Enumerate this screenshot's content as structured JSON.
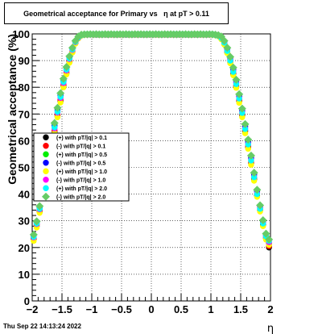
{
  "header": {
    "title": "Geometrical acceptance for Primary vs   η at pT > 0.11"
  },
  "footer": {
    "datestamp": "Thu Sep 22 14:13:24 2022"
  },
  "chart_data": {
    "type": "scatter",
    "title": "Geometrical acceptance for Primary vs   η at pT > 0.11",
    "xlabel": "η",
    "ylabel": "Geometrical acceptance (%)",
    "xlim": [
      -2,
      2
    ],
    "ylim": [
      0,
      100
    ],
    "xticks": [
      -2,
      -1.5,
      -1,
      -0.5,
      0,
      0.5,
      1,
      1.5,
      2
    ],
    "xtick_labels": [
      "−2",
      "−1.5",
      "−1",
      "−0.5",
      "0",
      "0.5",
      "1",
      "1.5",
      "2"
    ],
    "yticks": [
      0,
      10,
      20,
      30,
      40,
      50,
      60,
      70,
      80,
      90,
      100
    ],
    "ytick_labels": [
      "0",
      "10",
      "20",
      "30",
      "40",
      "50",
      "60",
      "70",
      "80",
      "90",
      "100"
    ],
    "grid": true,
    "legend_position": "left-middle",
    "x": [
      -1.975,
      -1.925,
      -1.875,
      -1.825,
      -1.775,
      -1.725,
      -1.675,
      -1.625,
      -1.575,
      -1.525,
      -1.475,
      -1.425,
      -1.375,
      -1.325,
      -1.275,
      -1.225,
      -1.175,
      -1.125,
      -1.075,
      -1.025,
      -0.975,
      -0.925,
      -0.875,
      -0.825,
      -0.775,
      -0.725,
      -0.675,
      -0.625,
      -0.575,
      -0.525,
      -0.475,
      -0.425,
      -0.375,
      -0.325,
      -0.275,
      -0.225,
      -0.175,
      -0.125,
      -0.075,
      -0.025,
      0.025,
      0.075,
      0.125,
      0.175,
      0.225,
      0.275,
      0.325,
      0.375,
      0.425,
      0.475,
      0.525,
      0.575,
      0.625,
      0.675,
      0.725,
      0.775,
      0.825,
      0.875,
      0.925,
      0.975,
      1.025,
      1.075,
      1.125,
      1.175,
      1.225,
      1.275,
      1.325,
      1.375,
      1.425,
      1.475,
      1.525,
      1.575,
      1.625,
      1.675,
      1.725,
      1.775,
      1.825,
      1.875,
      1.925,
      1.975
    ],
    "series": [
      {
        "name": "(+) with pT/|q| > 0.1",
        "color": "#000000",
        "marker": "circle",
        "values": [
          23.2,
          28.0,
          33.5,
          39.0,
          45.2,
          51.5,
          57.5,
          63.2,
          69.3,
          74.8,
          80.5,
          85.2,
          89.5,
          93.2,
          96.5,
          98.5,
          99.4,
          99.7,
          99.8,
          99.8,
          99.8,
          99.7,
          99.8,
          99.7,
          99.8,
          99.7,
          99.8,
          99.8,
          99.7,
          99.8,
          99.8,
          99.7,
          99.8,
          99.7,
          99.8,
          99.8,
          99.7,
          99.8,
          99.7,
          99.8,
          99.7,
          99.8,
          99.8,
          99.7,
          99.8,
          99.7,
          99.8,
          99.8,
          99.7,
          99.8,
          99.8,
          99.7,
          99.8,
          99.7,
          99.8,
          99.7,
          99.8,
          99.8,
          99.7,
          99.8,
          99.8,
          99.6,
          99.2,
          98.3,
          96.2,
          93.0,
          89.3,
          85.0,
          80.3,
          74.8,
          69.5,
          63.5,
          57.5,
          51.5,
          45.5,
          39.5,
          34.0,
          28.5,
          23.5,
          20.0
        ]
      },
      {
        "name": "(-) with pT/|q| > 0.1",
        "color": "#ff0000",
        "marker": "circle",
        "values": [
          23.6,
          28.5,
          34.0,
          39.5,
          45.8,
          52.0,
          58.0,
          63.8,
          69.8,
          75.3,
          81.0,
          85.7,
          90.0,
          93.6,
          96.8,
          98.7,
          99.5,
          99.8,
          99.7,
          99.8,
          99.7,
          99.8,
          99.7,
          99.8,
          99.7,
          99.8,
          99.7,
          99.7,
          99.8,
          99.7,
          99.7,
          99.8,
          99.7,
          99.8,
          99.7,
          99.7,
          99.8,
          99.7,
          99.8,
          99.7,
          99.8,
          99.7,
          99.7,
          99.8,
          99.7,
          99.8,
          99.7,
          99.7,
          99.8,
          99.7,
          99.7,
          99.8,
          99.7,
          99.8,
          99.7,
          99.8,
          99.7,
          99.7,
          99.8,
          99.7,
          99.7,
          99.7,
          99.3,
          98.5,
          96.6,
          93.4,
          89.8,
          85.5,
          80.8,
          75.3,
          70.0,
          64.0,
          58.0,
          52.0,
          46.0,
          40.0,
          34.5,
          29.0,
          24.0,
          20.5
        ]
      },
      {
        "name": "(+) with pT/|q| > 0.5",
        "color": "#00ee00",
        "marker": "circle",
        "values": [
          24.5,
          29.5,
          35.0,
          41.0,
          47.5,
          54.0,
          60.2,
          66.0,
          71.8,
          77.3,
          82.7,
          87.2,
          91.3,
          94.6,
          97.3,
          98.9,
          99.6,
          99.8,
          99.9,
          99.9,
          99.8,
          99.9,
          99.8,
          99.9,
          99.8,
          99.9,
          99.9,
          99.8,
          99.9,
          99.8,
          99.9,
          99.9,
          99.8,
          99.9,
          99.8,
          99.9,
          99.9,
          99.8,
          99.9,
          99.8,
          99.9,
          99.8,
          99.9,
          99.9,
          99.8,
          99.9,
          99.8,
          99.9,
          99.9,
          99.8,
          99.9,
          99.8,
          99.9,
          99.8,
          99.9,
          99.9,
          99.8,
          99.9,
          99.8,
          99.9,
          99.9,
          99.7,
          99.4,
          98.8,
          97.2,
          94.4,
          91.0,
          87.0,
          82.4,
          77.0,
          71.6,
          65.6,
          59.8,
          53.8,
          47.5,
          41.2,
          35.5,
          29.8,
          25.0,
          21.5
        ]
      },
      {
        "name": "(-) with pT/|q| > 0.5",
        "color": "#0000ff",
        "marker": "circle",
        "values": [
          24.2,
          29.2,
          34.8,
          40.6,
          47.0,
          53.5,
          59.6,
          65.5,
          71.3,
          76.8,
          82.2,
          86.8,
          91.0,
          94.4,
          97.1,
          98.8,
          99.6,
          99.8,
          99.8,
          99.8,
          99.9,
          99.8,
          99.8,
          99.9,
          99.8,
          99.8,
          99.9,
          99.8,
          99.8,
          99.9,
          99.8,
          99.8,
          99.9,
          99.8,
          99.8,
          99.9,
          99.8,
          99.8,
          99.9,
          99.8,
          99.8,
          99.9,
          99.8,
          99.8,
          99.9,
          99.8,
          99.8,
          99.9,
          99.8,
          99.8,
          99.9,
          99.8,
          99.8,
          99.9,
          99.8,
          99.8,
          99.9,
          99.8,
          99.8,
          99.9,
          99.8,
          99.7,
          99.4,
          98.6,
          97.0,
          94.0,
          90.6,
          86.6,
          82.0,
          76.6,
          71.2,
          65.2,
          59.4,
          53.4,
          47.2,
          41.0,
          35.2,
          29.5,
          24.6,
          21.2
        ]
      },
      {
        "name": "(+) with pT/|q| > 1.0",
        "color": "#ffff00",
        "marker": "circle",
        "values": [
          22.5,
          27.5,
          33.0,
          38.5,
          44.8,
          51.0,
          57.0,
          62.8,
          68.8,
          74.3,
          80.0,
          84.8,
          89.2,
          93.0,
          96.3,
          98.3,
          99.3,
          99.7,
          99.8,
          99.9,
          99.8,
          99.8,
          99.9,
          99.8,
          99.8,
          99.9,
          99.8,
          99.8,
          99.9,
          99.8,
          99.8,
          99.9,
          99.8,
          99.8,
          99.9,
          99.8,
          99.8,
          99.9,
          99.8,
          99.8,
          99.9,
          99.8,
          99.8,
          99.9,
          99.8,
          99.8,
          99.9,
          99.8,
          99.8,
          99.9,
          99.8,
          99.8,
          99.9,
          99.8,
          99.8,
          99.9,
          99.8,
          99.8,
          99.9,
          99.8,
          99.7,
          99.5,
          99.1,
          98.0,
          96.0,
          92.8,
          89.0,
          84.5,
          79.8,
          74.2,
          68.8,
          62.8,
          57.0,
          51.0,
          45.0,
          39.0,
          33.5,
          28.0,
          23.0,
          21.0
        ]
      },
      {
        "name": "(-) with pT/|q| > 1.0",
        "color": "#ff00ff",
        "marker": "circle",
        "values": [
          23.8,
          28.8,
          34.3,
          40.0,
          46.3,
          52.6,
          58.8,
          64.6,
          70.5,
          76.0,
          81.6,
          86.3,
          90.6,
          94.0,
          96.9,
          98.6,
          99.5,
          99.8,
          99.8,
          99.8,
          99.8,
          99.9,
          99.8,
          99.8,
          99.8,
          99.9,
          99.8,
          99.8,
          99.8,
          99.9,
          99.8,
          99.8,
          99.8,
          99.9,
          99.8,
          99.8,
          99.8,
          99.9,
          99.8,
          99.8,
          99.8,
          99.9,
          99.8,
          99.8,
          99.8,
          99.9,
          99.8,
          99.8,
          99.8,
          99.9,
          99.8,
          99.8,
          99.8,
          99.9,
          99.8,
          99.8,
          99.8,
          99.9,
          99.8,
          99.8,
          99.8,
          99.6,
          99.3,
          98.6,
          96.8,
          93.8,
          90.2,
          86.0,
          81.5,
          76.0,
          70.6,
          64.6,
          58.8,
          52.8,
          46.5,
          40.3,
          34.8,
          29.2,
          24.3,
          22.0
        ]
      },
      {
        "name": "(+) with pT/|q| > 2.0",
        "color": "#00ffff",
        "marker": "circle",
        "values": [
          24.0,
          29.0,
          34.5,
          40.3,
          46.6,
          53.0,
          59.2,
          65.0,
          70.8,
          76.4,
          82.0,
          86.6,
          90.8,
          94.2,
          97.0,
          98.7,
          99.5,
          99.8,
          99.9,
          99.8,
          99.9,
          99.8,
          99.9,
          99.9,
          99.8,
          99.9,
          99.8,
          99.9,
          99.9,
          99.8,
          99.9,
          99.8,
          99.9,
          99.9,
          99.8,
          99.9,
          99.8,
          99.9,
          99.9,
          99.8,
          99.9,
          99.8,
          99.9,
          99.9,
          99.8,
          99.9,
          99.8,
          99.9,
          99.9,
          99.8,
          99.9,
          99.8,
          99.9,
          99.9,
          99.8,
          99.9,
          99.8,
          99.9,
          99.9,
          99.8,
          99.9,
          99.6,
          99.3,
          98.5,
          96.7,
          93.6,
          90.0,
          85.8,
          81.2,
          75.8,
          70.4,
          64.4,
          58.6,
          52.6,
          46.3,
          40.0,
          34.5,
          29.0,
          24.2,
          22.5
        ]
      },
      {
        "name": "(-) with pT/|q| > 2.0",
        "color": "#66cc66",
        "marker": "diamond",
        "values": [
          24.8,
          29.8,
          35.5,
          41.5,
          48.0,
          54.5,
          60.8,
          66.6,
          72.3,
          77.8,
          83.2,
          87.6,
          91.6,
          94.8,
          97.4,
          99.0,
          99.7,
          99.8,
          99.8,
          99.9,
          99.8,
          99.9,
          99.8,
          99.8,
          99.9,
          99.8,
          99.9,
          99.8,
          99.8,
          99.9,
          99.8,
          99.9,
          99.8,
          99.8,
          99.9,
          99.8,
          99.9,
          99.8,
          99.8,
          99.9,
          99.8,
          99.9,
          99.8,
          99.8,
          99.9,
          99.8,
          99.9,
          99.8,
          99.8,
          99.9,
          99.8,
          99.9,
          99.8,
          99.8,
          99.9,
          99.8,
          99.9,
          99.8,
          99.8,
          99.9,
          99.8,
          99.7,
          99.5,
          99.0,
          97.4,
          94.8,
          91.4,
          87.4,
          82.8,
          77.4,
          72.0,
          66.2,
          60.4,
          54.4,
          48.0,
          41.6,
          35.8,
          30.2,
          25.2,
          23.0
        ]
      }
    ]
  }
}
